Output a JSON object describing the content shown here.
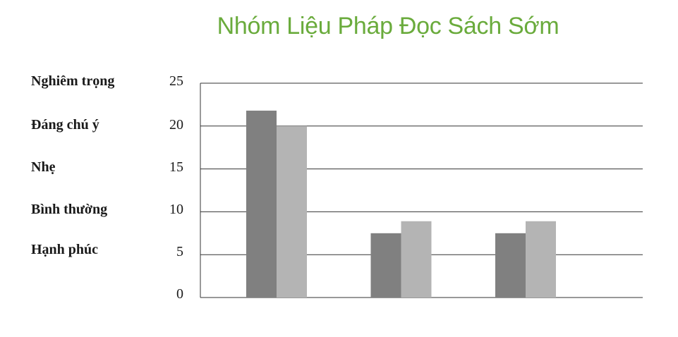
{
  "chart_data": {
    "type": "bar",
    "title": "Nhóm Liệu Pháp Đọc Sách Sớm",
    "category_labels_left": [
      "Nghiêm trọng",
      "Đáng chú ý",
      "Nhẹ",
      "Bình thường",
      "Hạnh phúc"
    ],
    "yticks": [
      "25",
      "20",
      "15",
      "10",
      "5",
      "0"
    ],
    "ylim": [
      0,
      25
    ],
    "grid": true,
    "categories": [
      "",
      "",
      ""
    ],
    "series": [
      {
        "values": [
          21.8,
          7.5,
          7.5
        ],
        "color": "#808080"
      },
      {
        "values": [
          20,
          8.9,
          8.9
        ],
        "color": "#b4b4b4"
      }
    ]
  }
}
